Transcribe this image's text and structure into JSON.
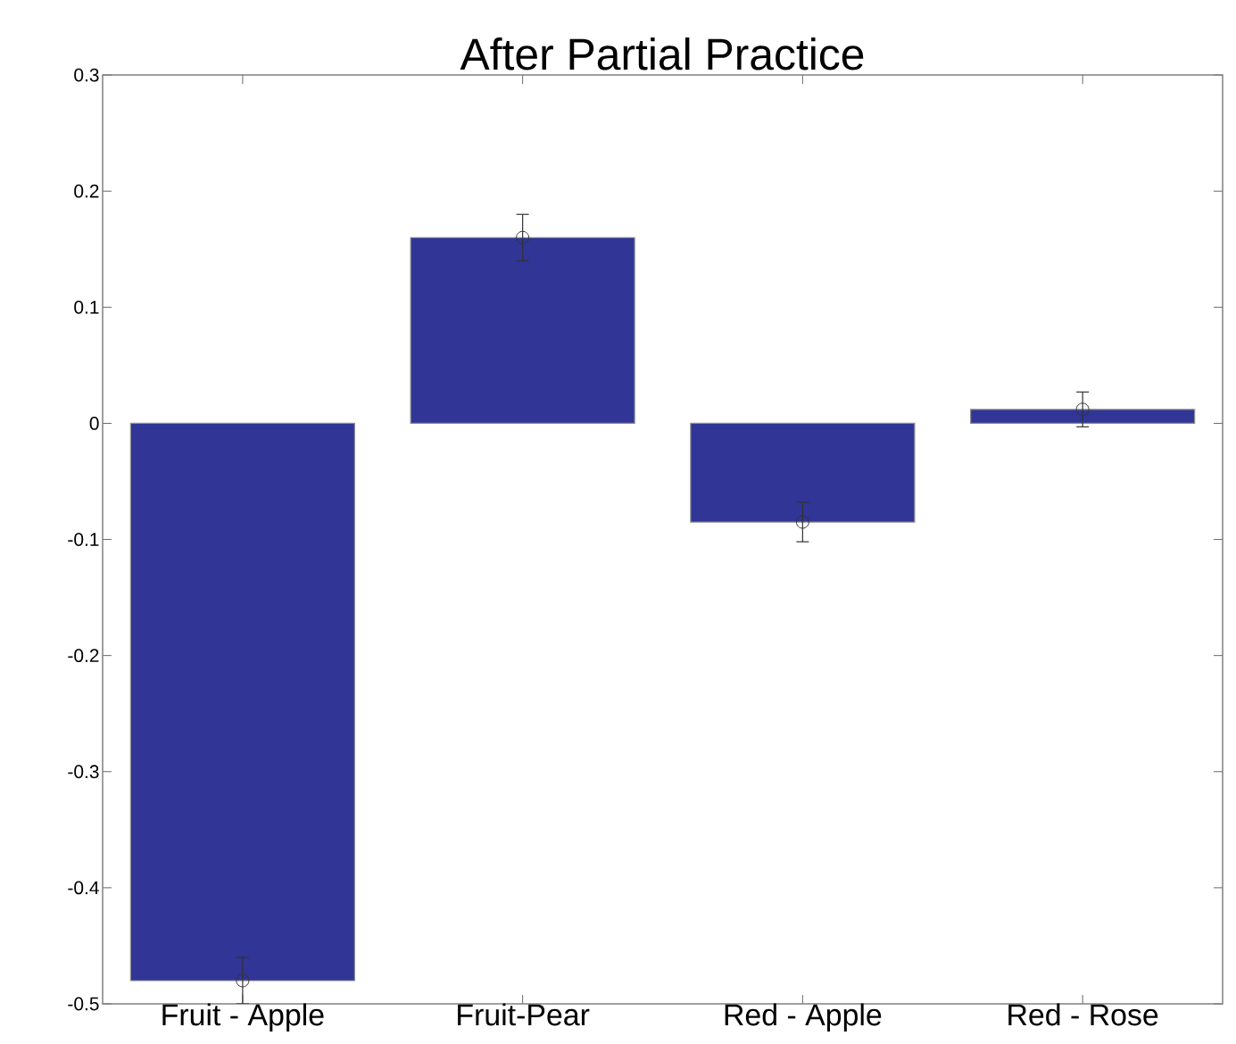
{
  "chart_data": {
    "type": "bar",
    "title": "After Partial Practice",
    "categories": [
      "Fruit - Apple",
      "Fruit-Pear",
      "Red - Apple",
      "Red - Rose"
    ],
    "series": [
      {
        "color": "#303596",
        "values": [
          -0.48,
          0.16,
          -0.085,
          0.012
        ]
      },
      {
        "type": "scatter",
        "color": "#333333",
        "x": [
          "Fruit - Apple",
          "Fruit-Pear",
          "Red - Apple",
          "Red - Rose"
        ],
        "values": [
          -0.48,
          0.16,
          -0.085,
          0.012
        ],
        "errors": [
          0.02,
          0.02,
          0.017,
          0.015
        ]
      }
    ],
    "marker": "circle",
    "ylim": [
      -0.5,
      0.3
    ],
    "yticks": [
      -0.5,
      -0.4,
      -0.3,
      -0.2,
      -0.1,
      0,
      0.1,
      0.2,
      0.3
    ]
  }
}
